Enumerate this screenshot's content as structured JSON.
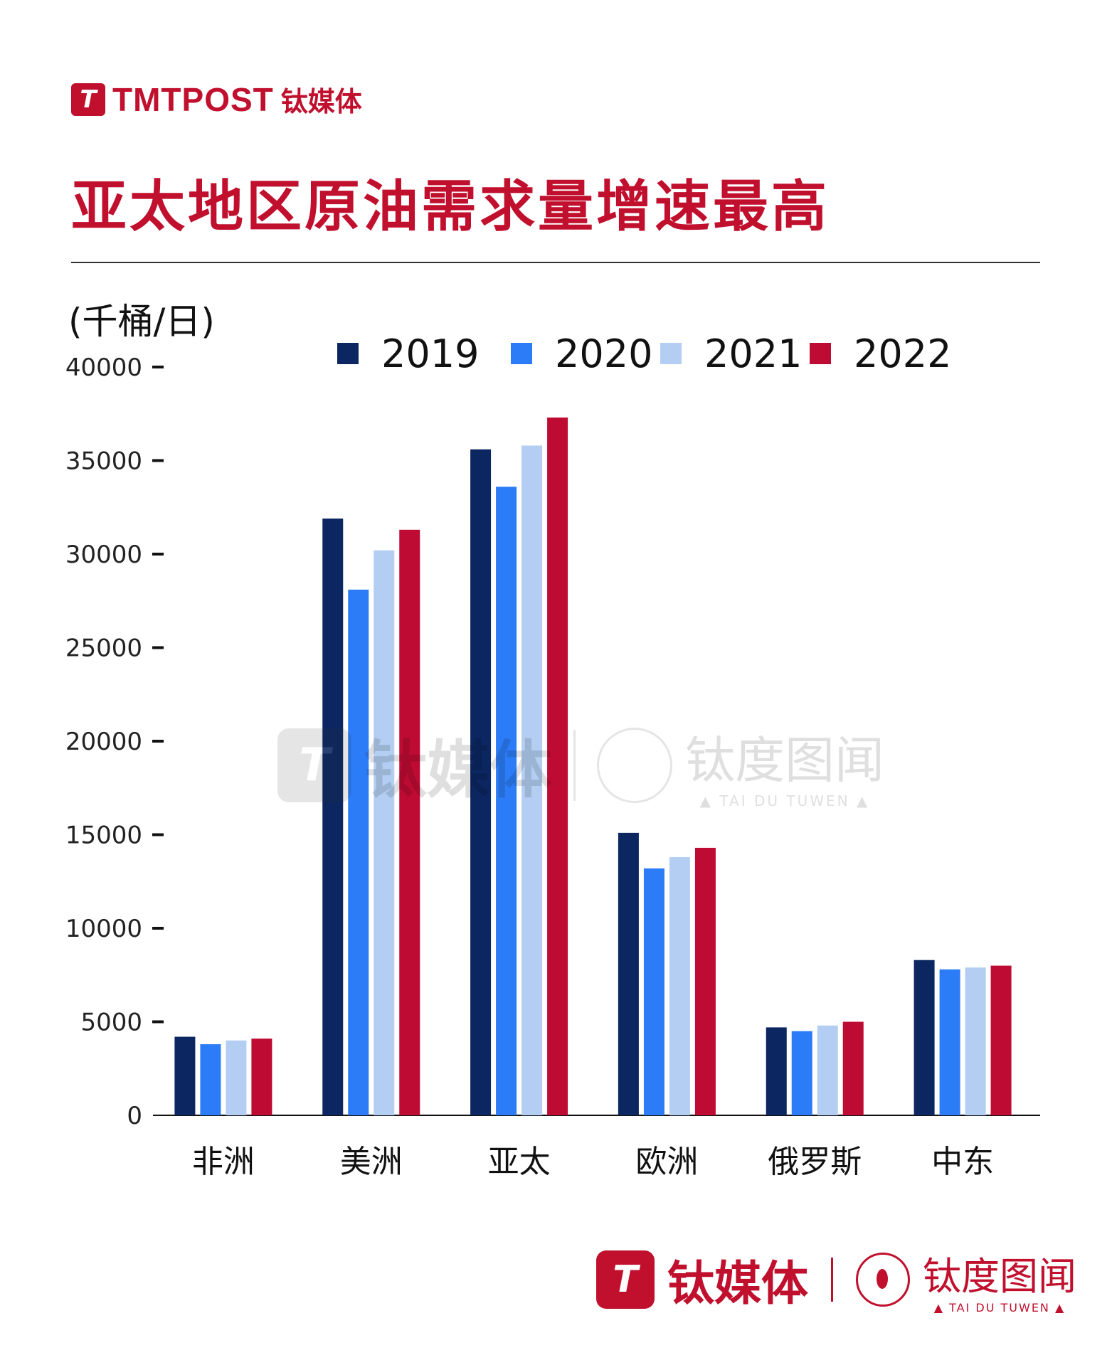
{
  "brand": {
    "logo_letter": "T",
    "name_en": "TMTPOST",
    "name_cn": "钛媒体"
  },
  "title": "亚太地区原油需求量增速最高",
  "unit": "(千桶/日)",
  "watermark": {
    "logo_letter": "T",
    "left_text": "钛媒体",
    "right_cn": "钛度图闻",
    "right_en": "▲ TAI DU TUWEN ▲"
  },
  "footer": {
    "logo_letter": "T",
    "left_text": "钛媒体",
    "right_cn": "钛度图闻",
    "right_en": "▲ TAI DU TUWEN ▲"
  },
  "colors": {
    "brand_red": "#c0102e"
  },
  "chart_data": {
    "type": "bar",
    "categories": [
      "非洲",
      "美洲",
      "亚太",
      "欧洲",
      "俄罗斯",
      "中东"
    ],
    "series": [
      {
        "name": "2019",
        "color": "#0b2660",
        "values": [
          4200,
          31900,
          35600,
          15100,
          4700,
          8300
        ]
      },
      {
        "name": "2020",
        "color": "#2b7cf6",
        "values": [
          3800,
          28100,
          33600,
          13200,
          4500,
          7800
        ]
      },
      {
        "name": "2021",
        "color": "#b3cef2",
        "values": [
          4000,
          30200,
          35800,
          13800,
          4800,
          7900
        ]
      },
      {
        "name": "2022",
        "color": "#bd0b33",
        "values": [
          4100,
          31300,
          37300,
          14300,
          5000,
          8000
        ]
      }
    ],
    "yticks": [
      0,
      5000,
      10000,
      15000,
      20000,
      25000,
      30000,
      35000,
      40000
    ],
    "ylim": [
      0,
      40000
    ],
    "legend_position": "top",
    "grid": false
  }
}
